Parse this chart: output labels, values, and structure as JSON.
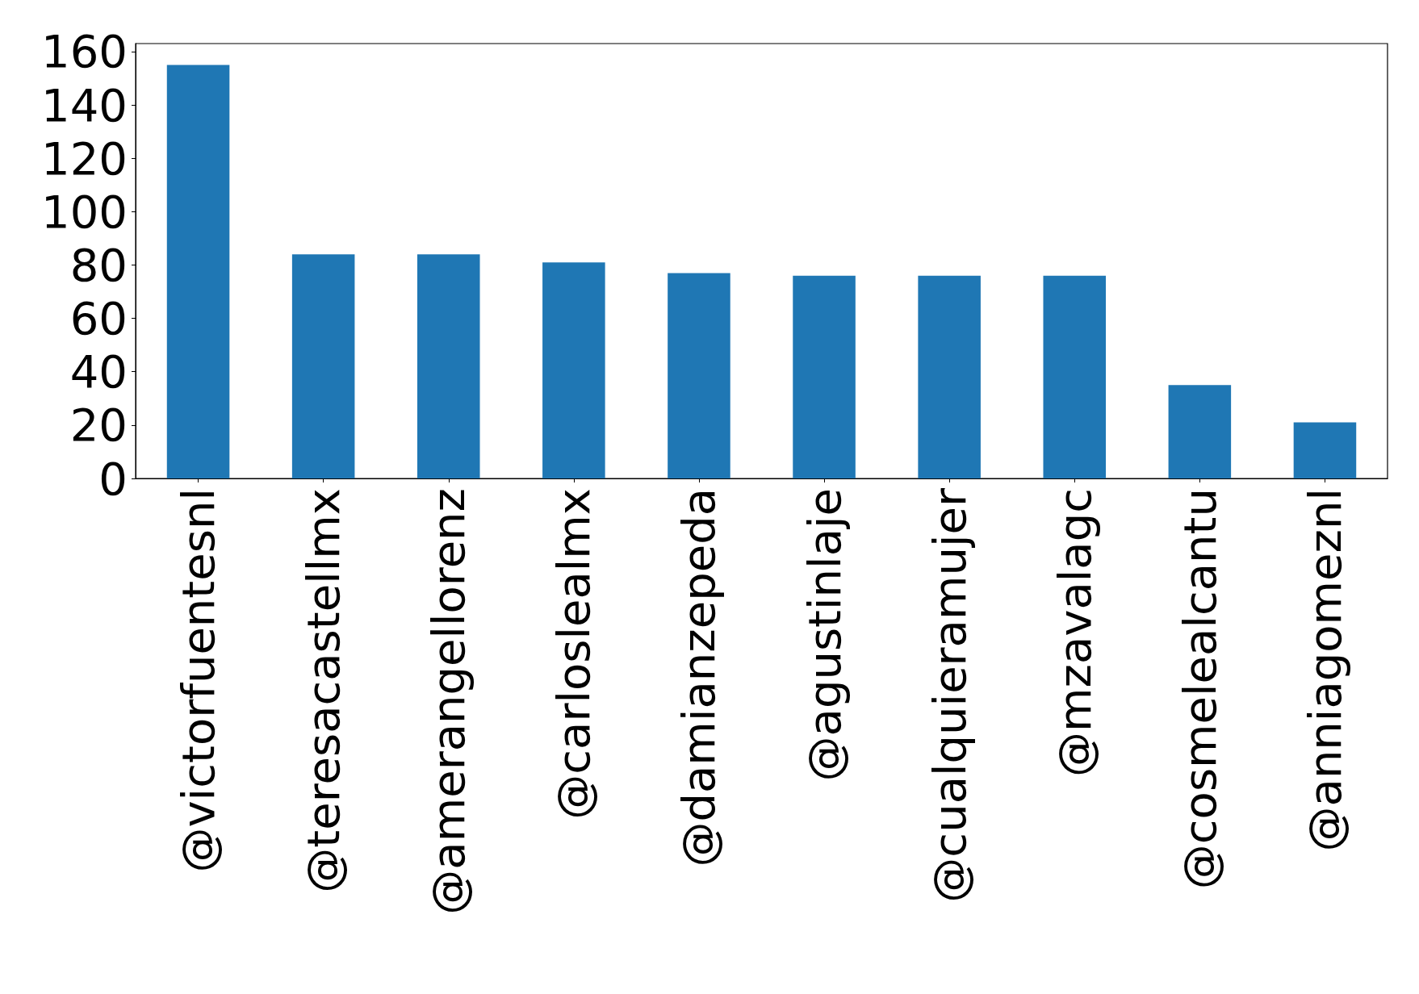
{
  "chart_data": {
    "type": "bar",
    "categories": [
      "@victorfuentesnl",
      "@teresacastellmx",
      "@amerangellorenz",
      "@carloslealmx",
      "@damianzepeda",
      "@agustinlaje",
      "@cualquieramujer",
      "@mzavalagc",
      "@cosmelealcantu",
      "@anniagomeznl"
    ],
    "values": [
      155,
      84,
      84,
      81,
      77,
      76,
      76,
      76,
      35,
      21
    ],
    "color": "#1f77b4",
    "ylim": [
      0,
      163
    ],
    "yticks": [
      0,
      20,
      40,
      60,
      80,
      100,
      120,
      140,
      160
    ],
    "grid": false
  }
}
